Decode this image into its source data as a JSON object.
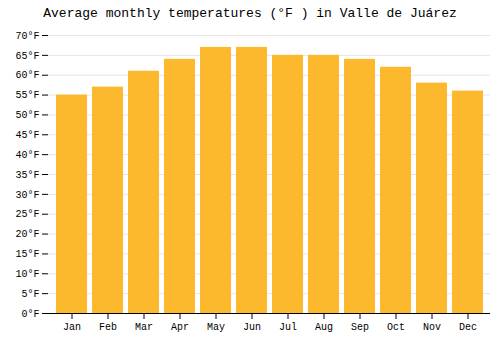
{
  "chart_data": {
    "type": "bar",
    "title": "Average monthly temperatures (°F ) in Valle de Juárez",
    "categories": [
      "Jan",
      "Feb",
      "Mar",
      "Apr",
      "May",
      "Jun",
      "Jul",
      "Aug",
      "Sep",
      "Oct",
      "Nov",
      "Dec"
    ],
    "values": [
      55,
      57,
      61,
      64,
      67,
      67,
      65,
      65,
      64,
      62,
      58,
      56
    ],
    "color": "#FDB92E",
    "ylim": [
      0,
      70
    ],
    "yticks": [
      {
        "value": 0,
        "label": "0°F"
      },
      {
        "value": 5,
        "label": "5°F"
      },
      {
        "value": 10,
        "label": "10°F"
      },
      {
        "value": 15,
        "label": "15°F"
      },
      {
        "value": 20,
        "label": "20°F"
      },
      {
        "value": 25,
        "label": "25°F"
      },
      {
        "value": 30,
        "label": "30°F"
      },
      {
        "value": 35,
        "label": "35°F"
      },
      {
        "value": 40,
        "label": "40°F"
      },
      {
        "value": 45,
        "label": "45°F"
      },
      {
        "value": 50,
        "label": "50°F"
      },
      {
        "value": 55,
        "label": "55°F"
      },
      {
        "value": 60,
        "label": "60°F"
      },
      {
        "value": 65,
        "label": "65°F"
      },
      {
        "value": 70,
        "label": "70°F"
      }
    ],
    "grid": true
  }
}
